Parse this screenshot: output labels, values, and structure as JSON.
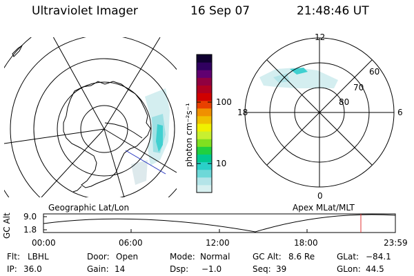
{
  "header": {
    "instrument": "Ultraviolet Imager",
    "date": "16 Sep 07",
    "time": "21:48:46 UT"
  },
  "colorbar": {
    "unit_label": "photon cm⁻²s⁻¹",
    "tick_100": "100",
    "tick_10": "10",
    "colors": [
      "#d7f0f0",
      "#b4e4e8",
      "#6ed8d8",
      "#2ad0c8",
      "#00c890",
      "#20d040",
      "#80e020",
      "#c8f030",
      "#f0f000",
      "#f0c000",
      "#f09000",
      "#e84000",
      "#d00000",
      "#b00020",
      "#900040",
      "#600070",
      "#300060",
      "#100030"
    ]
  },
  "geo_map": {
    "caption": "Geographic Lat/Lon"
  },
  "apex_map": {
    "caption": "Apex MLat/MLT",
    "mlt_labels": {
      "top": "12",
      "bottom": "0",
      "left": "18",
      "right": "6"
    },
    "lat_labels": [
      "60",
      "70",
      "80"
    ]
  },
  "timeline": {
    "y_label": "GC Alt",
    "y_ticks": [
      "9.0",
      "1.8"
    ],
    "x_ticks": [
      "00:00",
      "06:00",
      "12:00",
      "18:00",
      "23:59"
    ],
    "marker_color": "#e03030"
  },
  "info": {
    "flt_label": "Flt:",
    "flt_value": "LBHL",
    "ip_label": "IP:",
    "ip_value": "36.0",
    "door_label": "Door:",
    "door_value": "Open",
    "gain_label": "Gain:",
    "gain_value": "14",
    "mode_label": "Mode:",
    "mode_value": "Normal",
    "dsp_label": "Dsp:",
    "dsp_value": "−1.0",
    "gcalt_label": "GC Alt:",
    "gcalt_value": "8.6 Re",
    "seq_label": "Seq:",
    "seq_value": "39",
    "glat_label": "GLat:",
    "glat_value": "−84.1",
    "glon_label": "GLon:",
    "glon_value": "44.5"
  }
}
